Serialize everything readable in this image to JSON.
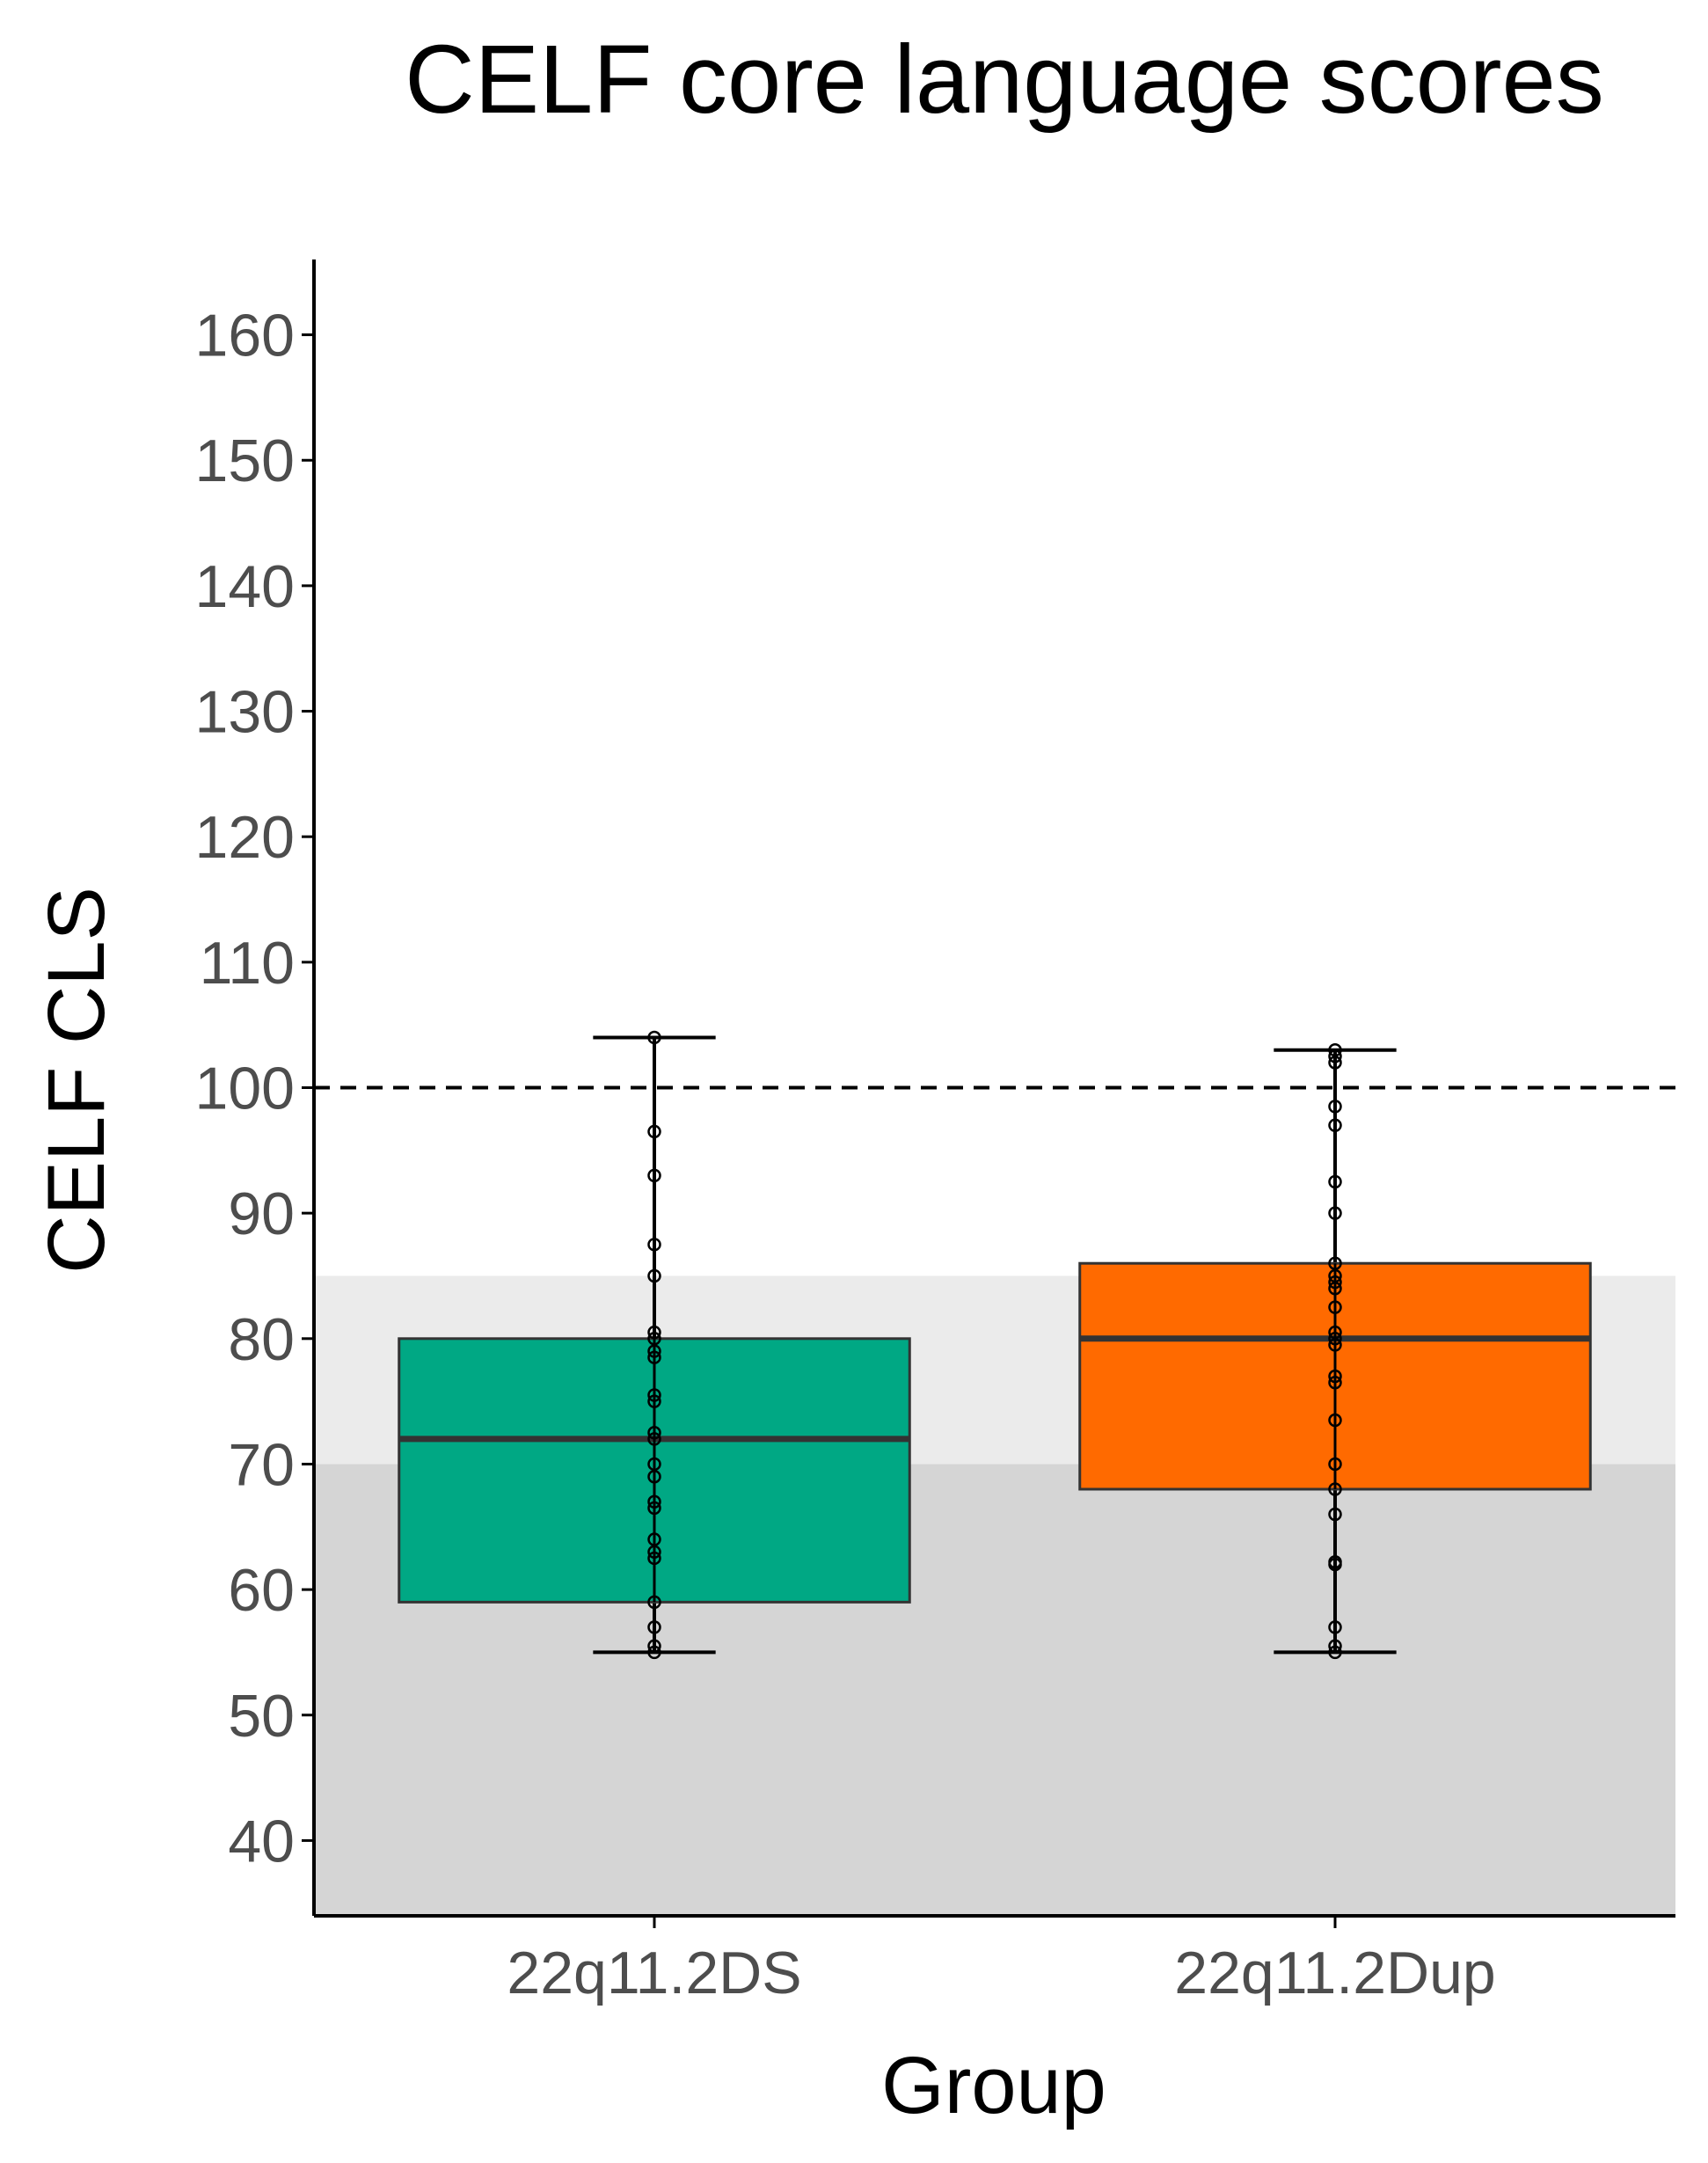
{
  "chart_data": {
    "type": "box",
    "title": "CELF core language scores",
    "xlabel": "Group",
    "ylabel": "CELF CLS",
    "ylim": [
      34,
      166
    ],
    "yticks": [
      40,
      50,
      60,
      70,
      80,
      90,
      100,
      110,
      120,
      130,
      140,
      150,
      160
    ],
    "categories": [
      "22q11.2DS",
      "22q11.2Dup"
    ],
    "reference_line": {
      "value": 100,
      "style": "dashed",
      "color": "#000000"
    },
    "shaded_bands": [
      {
        "from": 34,
        "to": 70,
        "color": "#d5d5d5"
      },
      {
        "from": 70,
        "to": 85,
        "color": "#ebebeb"
      }
    ],
    "grid": false,
    "series": [
      {
        "category": "22q11.2DS",
        "color": "#00a884",
        "min": 55,
        "q1": 59,
        "median": 72,
        "q3": 80,
        "max": 104,
        "points": [
          55,
          55.5,
          57,
          59,
          62.5,
          63,
          64,
          66.5,
          67,
          69,
          70,
          72,
          72.5,
          75,
          75.5,
          78.5,
          79,
          80,
          80.5,
          85,
          87.5,
          93,
          96.5,
          104
        ]
      },
      {
        "category": "22q11.2Dup",
        "color": "#ff6a00",
        "min": 55,
        "q1": 68,
        "median": 80,
        "q3": 86,
        "max": 103,
        "points": [
          55,
          55.5,
          57,
          62,
          62.2,
          66,
          68,
          70,
          73.5,
          76.5,
          77,
          79.5,
          80,
          80.5,
          82.5,
          84,
          84.5,
          85,
          86,
          90,
          92.5,
          97,
          98.5,
          102,
          102.5,
          103
        ]
      }
    ]
  }
}
